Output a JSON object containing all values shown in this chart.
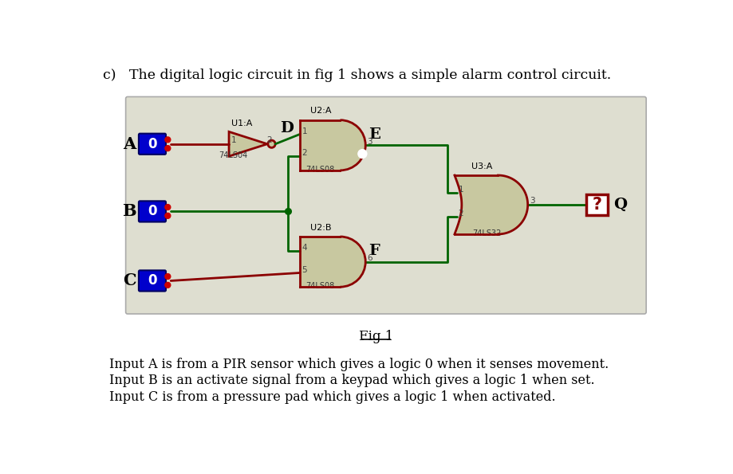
{
  "bg_color": "#deded0",
  "outer_bg": "#ffffff",
  "title_text": "c)   The digital logic circuit in fig 1 shows a simple alarm control circuit.",
  "fig_caption": "Fig 1",
  "input_labels": [
    "A",
    "B",
    "C"
  ],
  "gate_body_color": "#c8c8a0",
  "gate_border_color": "#8b0000",
  "wire_color_green": "#006400",
  "wire_color_red": "#8b0000",
  "pin_label_color": "#444444",
  "input_box_color": "#0000cc",
  "output_box_border": "#8b0000",
  "footer_text": [
    "Input A is from a PIR sensor which gives a logic 0 when it senses movement.",
    "Input B is an activate signal from a keypad which gives a logic 1 when set.",
    "Input C is from a pressure pad which gives a logic 1 when activated."
  ]
}
